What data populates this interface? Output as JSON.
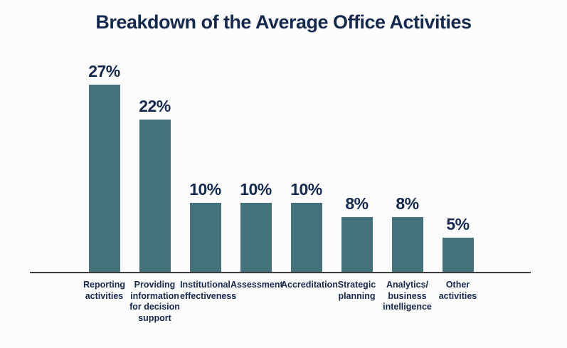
{
  "chart_data": {
    "type": "bar",
    "title": "Breakdown of the Average Office Activities",
    "categories": [
      "Reporting\nactivities",
      "Providing\ninformation\nfor decision\nsupport",
      "Institutional\neffectiveness",
      "Assessment",
      "Accreditation",
      "Strategic\nplanning",
      "Analytics/\nbusiness\nintelligence",
      "Other\nactivities"
    ],
    "values": [
      27,
      22,
      10,
      10,
      10,
      8,
      8,
      5
    ],
    "value_labels": [
      "27%",
      "22%",
      "10%",
      "10%",
      "10%",
      "8%",
      "8%",
      "5%"
    ],
    "xlabel": "",
    "ylabel": "",
    "ylim": [
      0,
      28
    ],
    "grid": false,
    "legend": "none",
    "bar_color": "#45717a",
    "text_color": "#14294e",
    "axis_color": "#3d3d3d",
    "background_color": "#fdfcfc"
  }
}
